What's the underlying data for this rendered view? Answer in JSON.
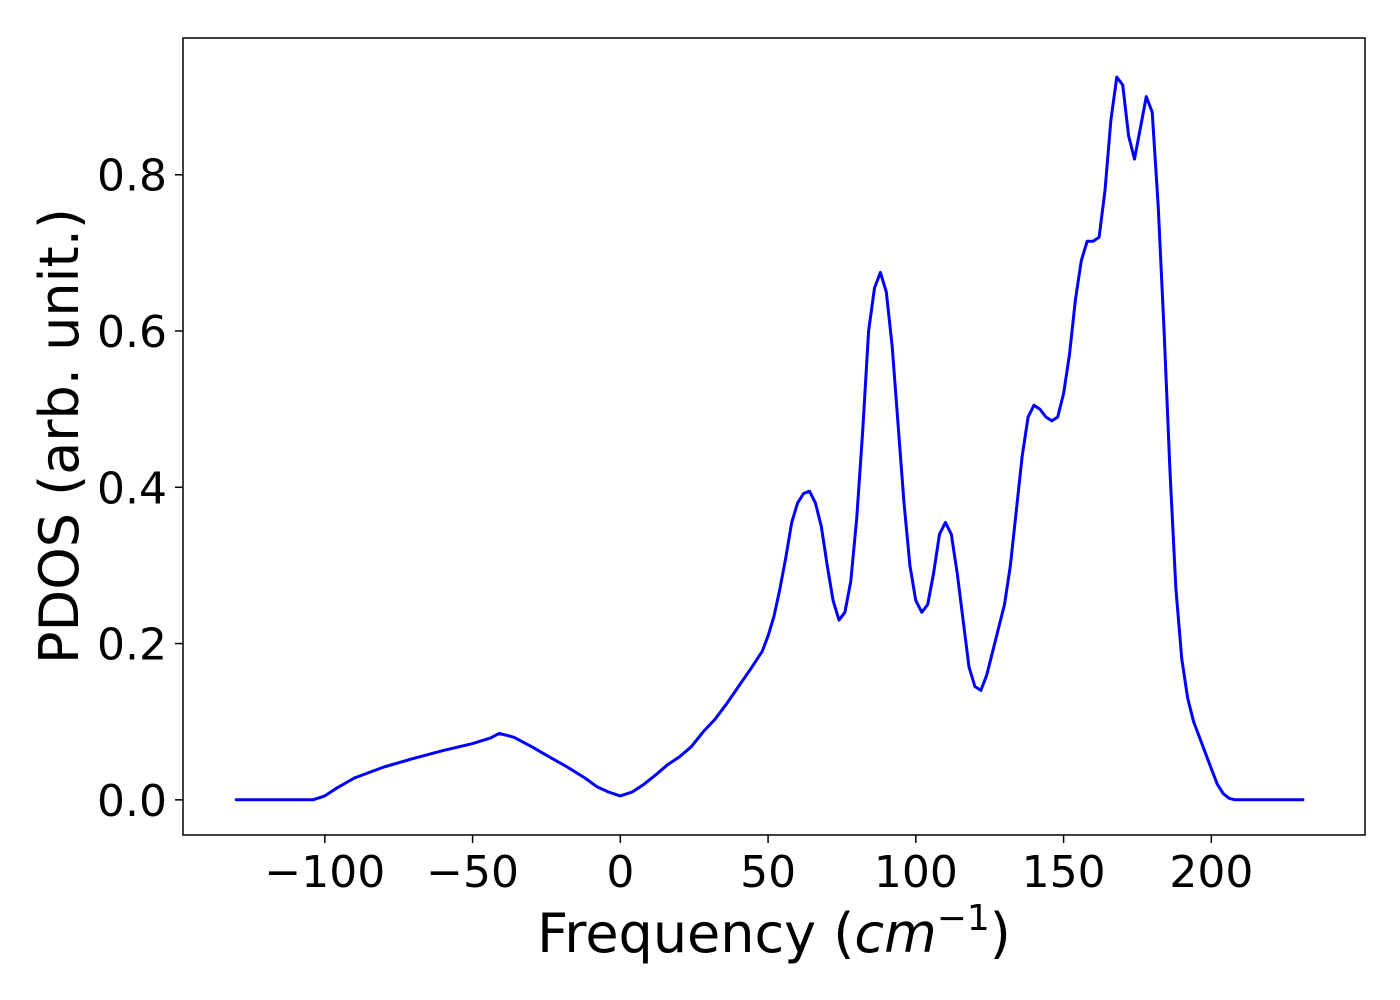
{
  "chart_data": {
    "type": "line",
    "title": "",
    "xlabel_prefix": "Frequency (",
    "xlabel_var": "cm",
    "xlabel_sup": "−1",
    "xlabel_suffix": ")",
    "ylabel": "PDOS (arb. unit.)",
    "xlim": [
      -148,
      252
    ],
    "ylim": [
      -0.045,
      0.975
    ],
    "xticks": [
      -100,
      -50,
      0,
      50,
      100,
      150,
      200
    ],
    "xtick_labels": [
      "−100",
      "−50",
      "0",
      "50",
      "100",
      "150",
      "200"
    ],
    "yticks": [
      0.0,
      0.2,
      0.4,
      0.6,
      0.8
    ],
    "ytick_labels": [
      "0.0",
      "0.2",
      "0.4",
      "0.6",
      "0.8"
    ],
    "grid": false,
    "legend": "none",
    "series": [
      {
        "color": "#0000ff",
        "x": [
          -130,
          -120,
          -110,
          -104,
          -100,
          -96,
          -90,
          -80,
          -70,
          -60,
          -50,
          -44,
          -41,
          -36,
          -30,
          -24,
          -18,
          -12,
          -8,
          -4,
          0,
          4,
          8,
          12,
          16,
          20,
          24,
          28,
          32,
          36,
          40,
          44,
          48,
          50,
          52,
          54,
          56,
          58,
          60,
          62,
          64,
          66,
          68,
          70,
          72,
          74,
          76,
          78,
          80,
          82,
          84,
          86,
          88,
          90,
          92,
          94,
          96,
          98,
          100,
          102,
          104,
          106,
          108,
          110,
          112,
          114,
          116,
          118,
          120,
          122,
          124,
          126,
          128,
          130,
          132,
          134,
          136,
          138,
          140,
          142,
          144,
          146,
          148,
          150,
          152,
          154,
          156,
          158,
          160,
          162,
          164,
          166,
          168,
          170,
          172,
          174,
          176,
          178,
          180,
          182,
          184,
          186,
          188,
          190,
          192,
          194,
          196,
          198,
          200,
          202,
          204,
          206,
          208,
          210,
          215,
          220,
          225,
          231
        ],
        "y": [
          0.0,
          0.0,
          0.0,
          0.0,
          0.005,
          0.015,
          0.028,
          0.042,
          0.053,
          0.063,
          0.072,
          0.079,
          0.085,
          0.08,
          0.068,
          0.055,
          0.042,
          0.028,
          0.017,
          0.01,
          0.005,
          0.01,
          0.02,
          0.032,
          0.045,
          0.055,
          0.068,
          0.087,
          0.103,
          0.123,
          0.145,
          0.167,
          0.19,
          0.21,
          0.235,
          0.27,
          0.31,
          0.355,
          0.38,
          0.392,
          0.395,
          0.38,
          0.35,
          0.3,
          0.255,
          0.23,
          0.24,
          0.28,
          0.36,
          0.47,
          0.6,
          0.655,
          0.675,
          0.65,
          0.58,
          0.48,
          0.38,
          0.3,
          0.255,
          0.24,
          0.25,
          0.29,
          0.34,
          0.355,
          0.34,
          0.29,
          0.23,
          0.17,
          0.145,
          0.14,
          0.16,
          0.19,
          0.22,
          0.25,
          0.3,
          0.37,
          0.44,
          0.49,
          0.505,
          0.5,
          0.49,
          0.485,
          0.49,
          0.52,
          0.57,
          0.64,
          0.69,
          0.715,
          0.715,
          0.72,
          0.78,
          0.87,
          0.925,
          0.915,
          0.85,
          0.82,
          0.86,
          0.9,
          0.88,
          0.76,
          0.6,
          0.42,
          0.27,
          0.18,
          0.13,
          0.1,
          0.08,
          0.06,
          0.04,
          0.02,
          0.008,
          0.002,
          0.0,
          0.0,
          0.0,
          0.0,
          0.0,
          0.0
        ]
      }
    ]
  }
}
